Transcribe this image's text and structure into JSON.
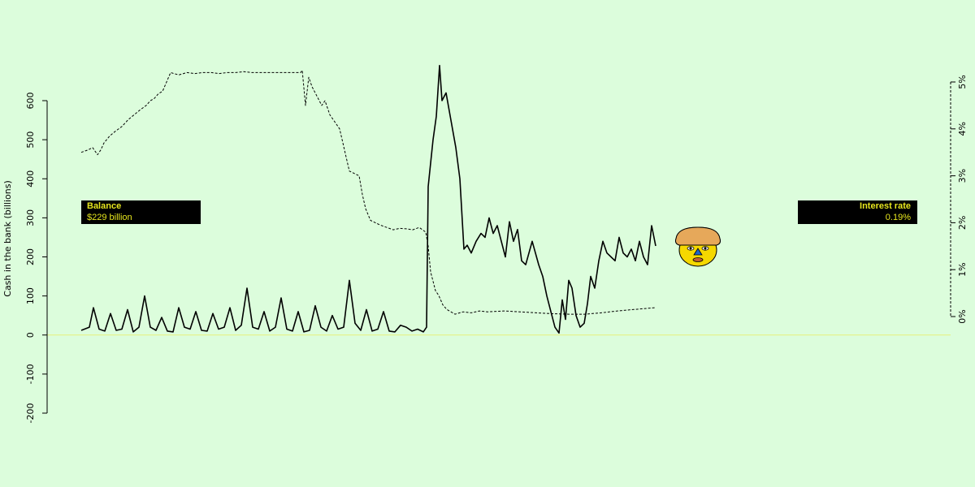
{
  "chart_data": {
    "type": "line",
    "title": "",
    "ylabel_left": "Cash in the bank (billions)",
    "ylim_left": [
      -200,
      600
    ],
    "yticks_left": [
      "-200",
      "-100",
      "0",
      "100",
      "200",
      "300",
      "400",
      "500",
      "600"
    ],
    "ylim_right": [
      0,
      5
    ],
    "yticks_right": [
      "0%",
      "1%",
      "2%",
      "3%",
      "4%",
      "5%"
    ],
    "zero_line_color": "#e6f07a",
    "series": [
      {
        "name": "Balance",
        "line_style": "solid",
        "color": "#000000",
        "axis": "left",
        "x": [
          0,
          10,
          15,
          22,
          29,
          36,
          43,
          50,
          57,
          64,
          71,
          78,
          85,
          92,
          99,
          106,
          113,
          120,
          127,
          134,
          141,
          148,
          155,
          162,
          169,
          176,
          183,
          190,
          197,
          204,
          211,
          218,
          225,
          232,
          239,
          246,
          253,
          260,
          267,
          274,
          281,
          288,
          295,
          302,
          309,
          316,
          323,
          330,
          337,
          344,
          351,
          358,
          365,
          372,
          379,
          386,
          393,
          400,
          407,
          414,
          421,
          425,
          427,
          429,
          433,
          437,
          441,
          444,
          449,
          455,
          461,
          466,
          471,
          475,
          480,
          486,
          492,
          497,
          502,
          507,
          512,
          517,
          522,
          527,
          532,
          537,
          542,
          547,
          555,
          563,
          568,
          573,
          578,
          583,
          588,
          592,
          596,
          600,
          604,
          609,
          614,
          619,
          623,
          627,
          632,
          637,
          642,
          647,
          652,
          657,
          662,
          667,
          672,
          677,
          682,
          687,
          692,
          697,
          702,
          707
        ],
        "y": [
          12,
          20,
          70,
          15,
          10,
          55,
          12,
          15,
          65,
          8,
          20,
          100,
          20,
          12,
          45,
          10,
          8,
          70,
          20,
          15,
          60,
          12,
          10,
          55,
          15,
          20,
          70,
          12,
          25,
          120,
          20,
          15,
          60,
          10,
          20,
          95,
          15,
          10,
          60,
          8,
          12,
          75,
          20,
          10,
          50,
          15,
          20,
          140,
          30,
          12,
          65,
          10,
          15,
          60,
          10,
          8,
          25,
          20,
          10,
          15,
          8,
          20,
          380,
          420,
          500,
          560,
          690,
          600,
          620,
          550,
          480,
          400,
          220,
          230,
          210,
          240,
          260,
          250,
          300,
          260,
          280,
          240,
          200,
          290,
          240,
          270,
          190,
          180,
          240,
          180,
          150,
          100,
          60,
          20,
          5,
          90,
          40,
          140,
          120,
          50,
          20,
          30,
          80,
          150,
          120,
          190,
          240,
          210,
          200,
          190,
          250,
          210,
          200,
          220,
          190,
          240,
          200,
          180,
          280,
          228
        ]
      },
      {
        "name": "Interest rate",
        "line_style": "dashed",
        "color": "#000000",
        "axis": "right",
        "x": [
          0,
          8,
          14,
          20,
          24,
          28,
          35,
          42,
          50,
          58,
          65,
          72,
          80,
          85,
          90,
          95,
          100,
          110,
          120,
          130,
          140,
          150,
          160,
          170,
          180,
          190,
          200,
          210,
          220,
          230,
          240,
          250,
          260,
          270,
          272,
          276,
          280,
          284,
          290,
          296,
          300,
          306,
          312,
          318,
          322,
          326,
          330,
          336,
          342,
          346,
          350,
          356,
          362,
          368,
          376,
          384,
          392,
          400,
          408,
          416,
          420,
          424,
          427,
          430,
          433,
          436,
          440,
          445,
          450,
          460,
          470,
          480,
          490,
          500,
          520,
          540,
          560,
          580,
          600,
          620,
          640,
          660,
          680,
          700,
          707
        ],
        "y": [
          3.5,
          3.55,
          3.6,
          3.45,
          3.55,
          3.7,
          3.85,
          3.95,
          4.05,
          4.2,
          4.3,
          4.4,
          4.5,
          4.6,
          4.65,
          4.75,
          4.8,
          5.2,
          5.15,
          5.2,
          5.18,
          5.2,
          5.2,
          5.18,
          5.2,
          5.2,
          5.22,
          5.2,
          5.2,
          5.2,
          5.2,
          5.2,
          5.2,
          5.2,
          5.25,
          4.5,
          5.1,
          4.9,
          4.7,
          4.5,
          4.6,
          4.3,
          4.15,
          4.0,
          3.7,
          3.4,
          3.1,
          3.05,
          3.0,
          2.6,
          2.3,
          2.05,
          2.0,
          1.95,
          1.9,
          1.85,
          1.88,
          1.87,
          1.85,
          1.9,
          1.85,
          1.8,
          1.5,
          0.95,
          0.75,
          0.55,
          0.45,
          0.25,
          0.15,
          0.05,
          0.1,
          0.08,
          0.12,
          0.1,
          0.12,
          0.1,
          0.08,
          0.06,
          0.05,
          0.05,
          0.08,
          0.12,
          0.15,
          0.18,
          0.19
        ]
      }
    ],
    "legend": "none"
  },
  "panels": {
    "balance": {
      "title": "Balance",
      "value": "$229 billion"
    },
    "interest": {
      "title": "Interest rate",
      "value": "0.19%"
    }
  },
  "colors": {
    "background": "#dcfddc",
    "panel_bg": "#000000",
    "panel_text": "#e6e61e",
    "face_hat": "#e6a85a",
    "face_skin": "#f5d800",
    "face_nose": "#1e64c8"
  },
  "icons": {
    "character": "face-icon"
  }
}
